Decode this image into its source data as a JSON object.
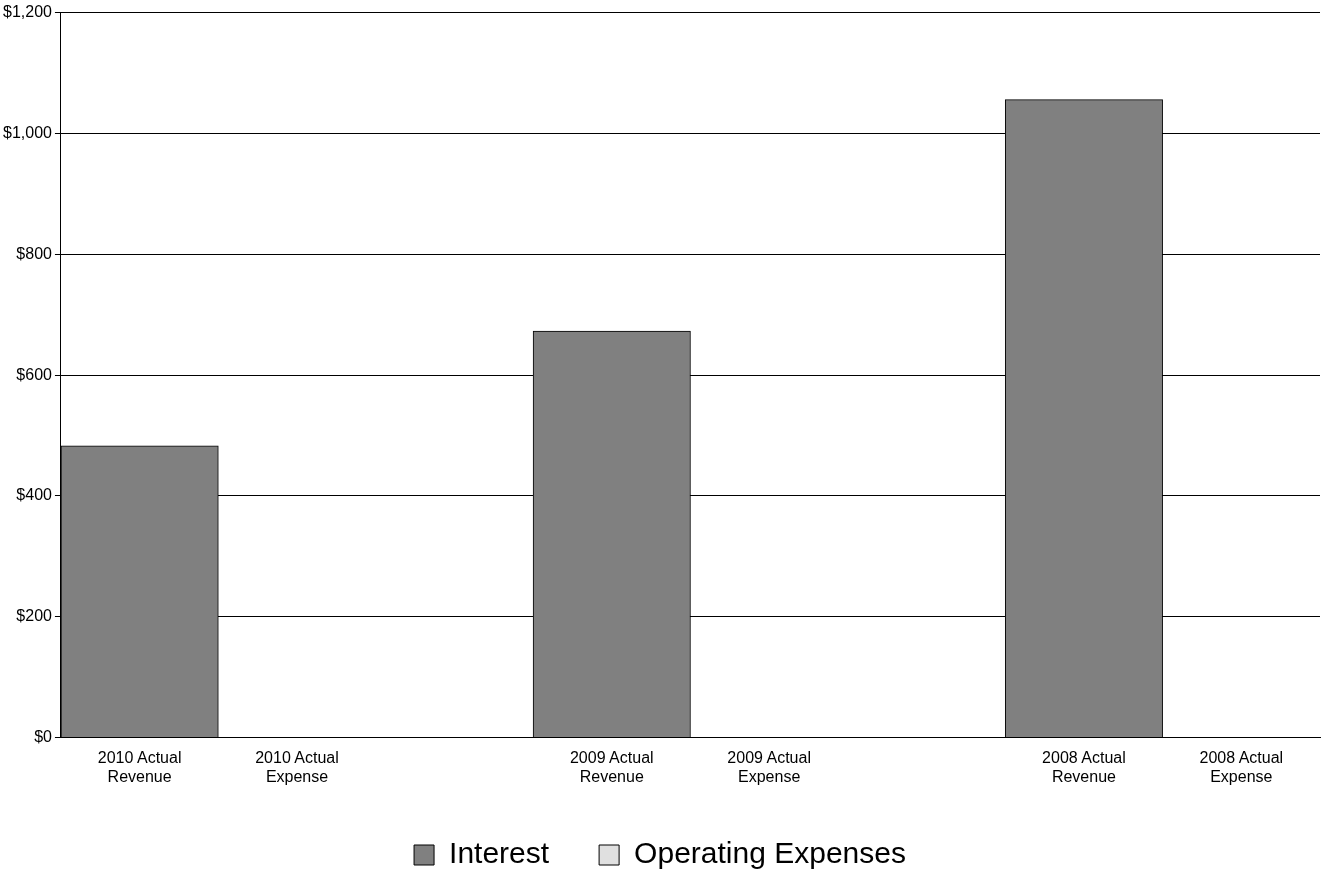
{
  "chart_data": {
    "type": "bar",
    "categories": [
      "2010 Actual Revenue",
      "2010 Actual Expense",
      null,
      "2009 Actual Revenue",
      "2009 Actual Expense",
      null,
      "2008 Actual Revenue",
      "2008 Actual Expense"
    ],
    "series": [
      {
        "name": "Interest",
        "color": "#808080",
        "values": [
          483,
          null,
          null,
          673,
          null,
          null,
          1056,
          null
        ]
      },
      {
        "name": "Operating Expenses",
        "color": "#e0e0e0",
        "values": [
          null,
          0,
          null,
          null,
          0,
          null,
          null,
          0
        ]
      }
    ],
    "stacked": true,
    "ylim": [
      0,
      1200
    ],
    "yticks": [
      {
        "value": 0,
        "label": "$0"
      },
      {
        "value": 200,
        "label": "$200"
      },
      {
        "value": 400,
        "label": "$400"
      },
      {
        "value": 600,
        "label": "$600"
      },
      {
        "value": 800,
        "label": "$800"
      },
      {
        "value": 1000,
        "label": "$1,000"
      },
      {
        "value": 1200,
        "label": "$1,200"
      }
    ],
    "grid": "y",
    "legend": "bottom"
  }
}
